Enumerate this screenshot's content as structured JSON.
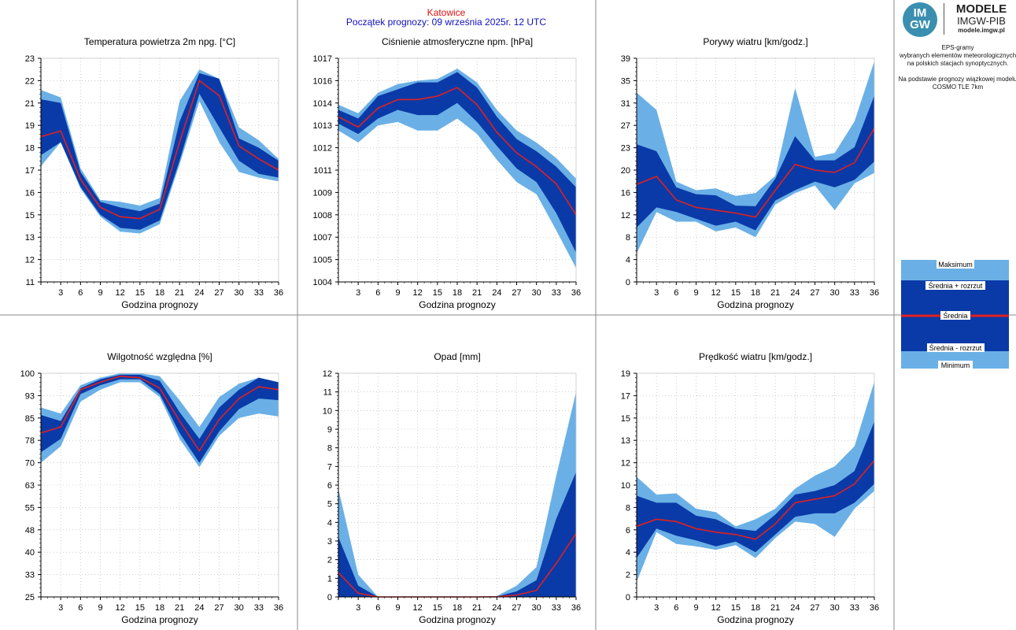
{
  "header": {
    "station": "Katowice",
    "forecast_start": "Początek prognozy: 09 września 2025r. 12 UTC",
    "station_color": "#e01010",
    "forecast_color": "#1010c0"
  },
  "logo": {
    "badge_top": "IM",
    "badge_bottom": "GW",
    "line1": "MODELE",
    "line2": "IMGW-PIB",
    "line3": "modele.imgw.pl"
  },
  "info": {
    "line1": "EPS-gramy",
    "line2": "wybranych elementów meteorologicznych",
    "line3": "na polskich stacjach  synoptycznych.",
    "line4": "Na podstawie prognozy wiązkowej modelu",
    "line5": "COSMO TLE 7km"
  },
  "legend": {
    "max": "Maksimum",
    "mean_plus": "Średnia + rozrzut",
    "mean": "Średnia",
    "mean_minus": "Średnia - rozrzut",
    "min": "Minimum"
  },
  "colors": {
    "minmax_band": "#6ab0e6",
    "spread_band": "#0a3aa8",
    "mean_line": "#e02020",
    "grid": "#b0b0b0",
    "divider": "#888888"
  },
  "chart_data": [
    {
      "type": "area",
      "title": "Temperatura powietrza 2m npg. [°C]",
      "xlabel": "Godzina prognozy",
      "x": [
        0,
        3,
        6,
        9,
        12,
        15,
        18,
        21,
        24,
        27,
        30,
        33,
        36
      ],
      "yticks": [
        11,
        12,
        13,
        15,
        16,
        17,
        18,
        19,
        21,
        22,
        23
      ],
      "ylim": [
        11,
        23
      ],
      "series": [
        {
          "name": "Maksimum",
          "values": [
            21.3,
            20.9,
            17.1,
            15.4,
            15.3,
            15.1,
            15.5,
            20.7,
            22.4,
            21.9,
            19.3,
            18.6,
            17.6
          ]
        },
        {
          "name": "Średnia + rozrzut",
          "values": [
            20.8,
            20.6,
            16.9,
            15.3,
            15.0,
            14.8,
            15.2,
            19.6,
            22.2,
            21.9,
            18.7,
            18.2,
            17.5
          ]
        },
        {
          "name": "Średnia",
          "values": [
            18.8,
            19.1,
            16.5,
            15.0,
            14.5,
            14.4,
            14.9,
            18.5,
            21.8,
            21.0,
            18.3,
            17.6,
            17.0
          ]
        },
        {
          "name": "Średnia - rozrzut",
          "values": [
            17.8,
            18.5,
            16.1,
            14.6,
            13.9,
            13.8,
            14.3,
            17.5,
            21.1,
            19.3,
            17.5,
            16.8,
            16.6
          ]
        },
        {
          "name": "Minimum",
          "values": [
            17.2,
            18.5,
            16.0,
            14.5,
            13.7,
            13.6,
            14.1,
            17.3,
            20.7,
            18.5,
            16.9,
            16.6,
            16.4
          ]
        }
      ]
    },
    {
      "type": "area",
      "title": "Ciśnienie atmosferyczne npm. [hPa]",
      "xlabel": "Godzina prognozy",
      "x": [
        0,
        3,
        6,
        9,
        12,
        15,
        18,
        21,
        24,
        27,
        30,
        33,
        36
      ],
      "yticks": [
        1004,
        1005,
        1007,
        1008,
        1009,
        1011,
        1012,
        1013,
        1014,
        1016,
        1017
      ],
      "ylim": [
        1004,
        1017
      ],
      "series": [
        {
          "name": "Maksimum",
          "values": [
            1014.3,
            1013.8,
            1015.0,
            1015.5,
            1015.7,
            1015.8,
            1016.4,
            1015.6,
            1014.0,
            1012.8,
            1012.1,
            1011.2,
            1010.0
          ]
        },
        {
          "name": "Średnia + rozrzut",
          "values": [
            1014.0,
            1013.5,
            1014.8,
            1015.2,
            1015.6,
            1015.6,
            1016.2,
            1015.3,
            1013.6,
            1012.3,
            1011.6,
            1010.7,
            1009.5
          ]
        },
        {
          "name": "Średnia",
          "values": [
            1013.6,
            1013.0,
            1014.1,
            1014.6,
            1014.6,
            1014.8,
            1015.3,
            1014.3,
            1012.7,
            1011.5,
            1010.7,
            1009.7,
            1007.9
          ]
        },
        {
          "name": "Średnia - rozrzut",
          "values": [
            1013.2,
            1012.6,
            1013.5,
            1014.0,
            1013.7,
            1013.7,
            1014.4,
            1013.3,
            1011.9,
            1010.6,
            1009.8,
            1008.0,
            1005.7
          ]
        },
        {
          "name": "Minimum",
          "values": [
            1012.8,
            1012.1,
            1013.1,
            1013.3,
            1012.8,
            1012.8,
            1013.5,
            1012.6,
            1011.1,
            1009.8,
            1009.1,
            1007.0,
            1004.8
          ]
        }
      ]
    },
    {
      "type": "area",
      "title": "Porywy wiatru [km/godz.]",
      "xlabel": "Godzina prognozy",
      "x": [
        0,
        3,
        6,
        9,
        12,
        15,
        18,
        21,
        24,
        27,
        30,
        33,
        36
      ],
      "yticks": [
        0,
        4,
        8,
        12,
        16,
        20,
        23,
        27,
        31,
        35,
        39
      ],
      "ylim": [
        0,
        39
      ],
      "series": [
        {
          "name": "Maksimum",
          "values": [
            33.0,
            30.0,
            17.5,
            16.0,
            16.3,
            15.0,
            15.5,
            18.5,
            33.8,
            21.8,
            22.5,
            28.0,
            38.5
          ]
        },
        {
          "name": "Średnia + rozrzut",
          "values": [
            24.0,
            22.8,
            16.5,
            15.3,
            15.1,
            13.3,
            13.2,
            18.0,
            25.4,
            21.2,
            21.2,
            23.5,
            32.5
          ]
        },
        {
          "name": "Średnia",
          "values": [
            17.0,
            18.4,
            14.3,
            13.0,
            12.5,
            12.0,
            11.3,
            16.0,
            20.5,
            19.5,
            19.1,
            20.8,
            26.8
          ]
        },
        {
          "name": "Średnia - rozrzut",
          "values": [
            9.5,
            13.0,
            12.2,
            11.0,
            9.8,
            10.5,
            9.0,
            14.2,
            16.0,
            17.5,
            16.5,
            17.8,
            21.0
          ]
        },
        {
          "name": "Minimum",
          "values": [
            5.0,
            12.2,
            10.5,
            10.5,
            8.8,
            9.5,
            7.8,
            13.5,
            15.5,
            16.8,
            12.5,
            17.2,
            19.0
          ]
        }
      ]
    },
    {
      "type": "area",
      "title": "Wilgotność względna [%]",
      "xlabel": "Godzina prognozy",
      "x": [
        0,
        3,
        6,
        9,
        12,
        15,
        18,
        21,
        24,
        27,
        30,
        33,
        36
      ],
      "yticks": [
        25,
        33,
        40,
        48,
        55,
        63,
        70,
        78,
        85,
        93,
        100
      ],
      "ylim": [
        25,
        100
      ],
      "series": [
        {
          "name": "Maksimum",
          "values": [
            88.5,
            86.5,
            96.0,
            98.5,
            100.0,
            100.0,
            99.0,
            91.0,
            82.0,
            92.0,
            96.5,
            98.5,
            97.0
          ]
        },
        {
          "name": "Średnia + rozrzut",
          "values": [
            86.0,
            84.0,
            95.0,
            98.0,
            99.5,
            99.5,
            97.5,
            87.0,
            78.0,
            88.5,
            94.5,
            98.5,
            97.0
          ]
        },
        {
          "name": "Średnia",
          "values": [
            80.0,
            82.0,
            94.5,
            97.0,
            99.0,
            98.5,
            95.0,
            84.0,
            74.0,
            84.5,
            91.5,
            95.5,
            94.5
          ]
        },
        {
          "name": "Średnia - rozrzut",
          "values": [
            73.5,
            78.0,
            93.0,
            96.0,
            98.0,
            98.0,
            93.0,
            80.0,
            70.0,
            80.5,
            88.0,
            91.5,
            91.0
          ]
        },
        {
          "name": "Minimum",
          "values": [
            70.0,
            75.5,
            90.5,
            94.5,
            97.0,
            97.0,
            92.0,
            78.0,
            68.5,
            79.0,
            85.0,
            86.5,
            85.5
          ]
        }
      ]
    },
    {
      "type": "area",
      "title": "Opad [mm]",
      "xlabel": "Godzina prognozy",
      "x": [
        0,
        3,
        6,
        9,
        12,
        15,
        18,
        21,
        24,
        27,
        30,
        33,
        36
      ],
      "yticks": [
        0,
        1,
        2,
        3,
        4,
        5,
        6,
        7,
        8,
        9,
        10,
        11,
        12
      ],
      "ylim": [
        0,
        12
      ],
      "series": [
        {
          "name": "Maksimum",
          "values": [
            5.8,
            1.2,
            0,
            0,
            0,
            0,
            0,
            0,
            0.05,
            0.6,
            1.6,
            6.5,
            11.0
          ]
        },
        {
          "name": "Średnia + rozrzut",
          "values": [
            3.2,
            0.6,
            0,
            0,
            0,
            0,
            0,
            0,
            0.02,
            0.3,
            0.9,
            4.2,
            6.7
          ]
        },
        {
          "name": "Średnia",
          "values": [
            1.3,
            0.2,
            0,
            0,
            0,
            0,
            0,
            0,
            0.01,
            0.1,
            0.35,
            1.8,
            3.4
          ]
        },
        {
          "name": "Średnia - rozrzut",
          "values": [
            0,
            0,
            0,
            0,
            0,
            0,
            0,
            0,
            0,
            0,
            0,
            0,
            0
          ]
        },
        {
          "name": "Minimum",
          "values": [
            0,
            0,
            0,
            0,
            0,
            0,
            0,
            0,
            0,
            0,
            0,
            0,
            0
          ]
        }
      ]
    },
    {
      "type": "area",
      "title": "Prędkość wiatru [km/godz.]",
      "xlabel": "Godzina prognozy",
      "x": [
        0,
        3,
        6,
        9,
        12,
        15,
        18,
        21,
        24,
        27,
        30,
        33,
        36
      ],
      "yticks": [
        0,
        2,
        4,
        6,
        8,
        10,
        12,
        13,
        15,
        17,
        19
      ],
      "ylim": [
        0,
        19
      ],
      "series": [
        {
          "name": "Maksimum",
          "values": [
            10.2,
            8.7,
            8.8,
            7.5,
            7.2,
            6.0,
            6.6,
            7.5,
            9.2,
            10.3,
            11.1,
            12.8,
            18.3
          ]
        },
        {
          "name": "Średnia + rozrzut",
          "values": [
            8.6,
            8.0,
            8.0,
            6.9,
            6.6,
            5.8,
            5.6,
            7.0,
            8.7,
            9.0,
            9.5,
            10.7,
            14.9
          ]
        },
        {
          "name": "Średnia",
          "values": [
            6.0,
            6.6,
            6.4,
            5.8,
            5.5,
            5.3,
            4.9,
            6.2,
            8.0,
            8.3,
            8.6,
            9.6,
            11.6
          ]
        },
        {
          "name": "Średnia - rozrzut",
          "values": [
            3.3,
            5.8,
            5.2,
            4.8,
            4.3,
            4.7,
            3.8,
            5.3,
            6.8,
            7.1,
            7.1,
            8.0,
            9.6
          ]
        },
        {
          "name": "Minimum",
          "values": [
            1.3,
            5.5,
            4.5,
            4.3,
            4.0,
            4.4,
            3.3,
            5.0,
            6.4,
            6.2,
            5.1,
            7.5,
            9.0
          ]
        }
      ]
    }
  ]
}
